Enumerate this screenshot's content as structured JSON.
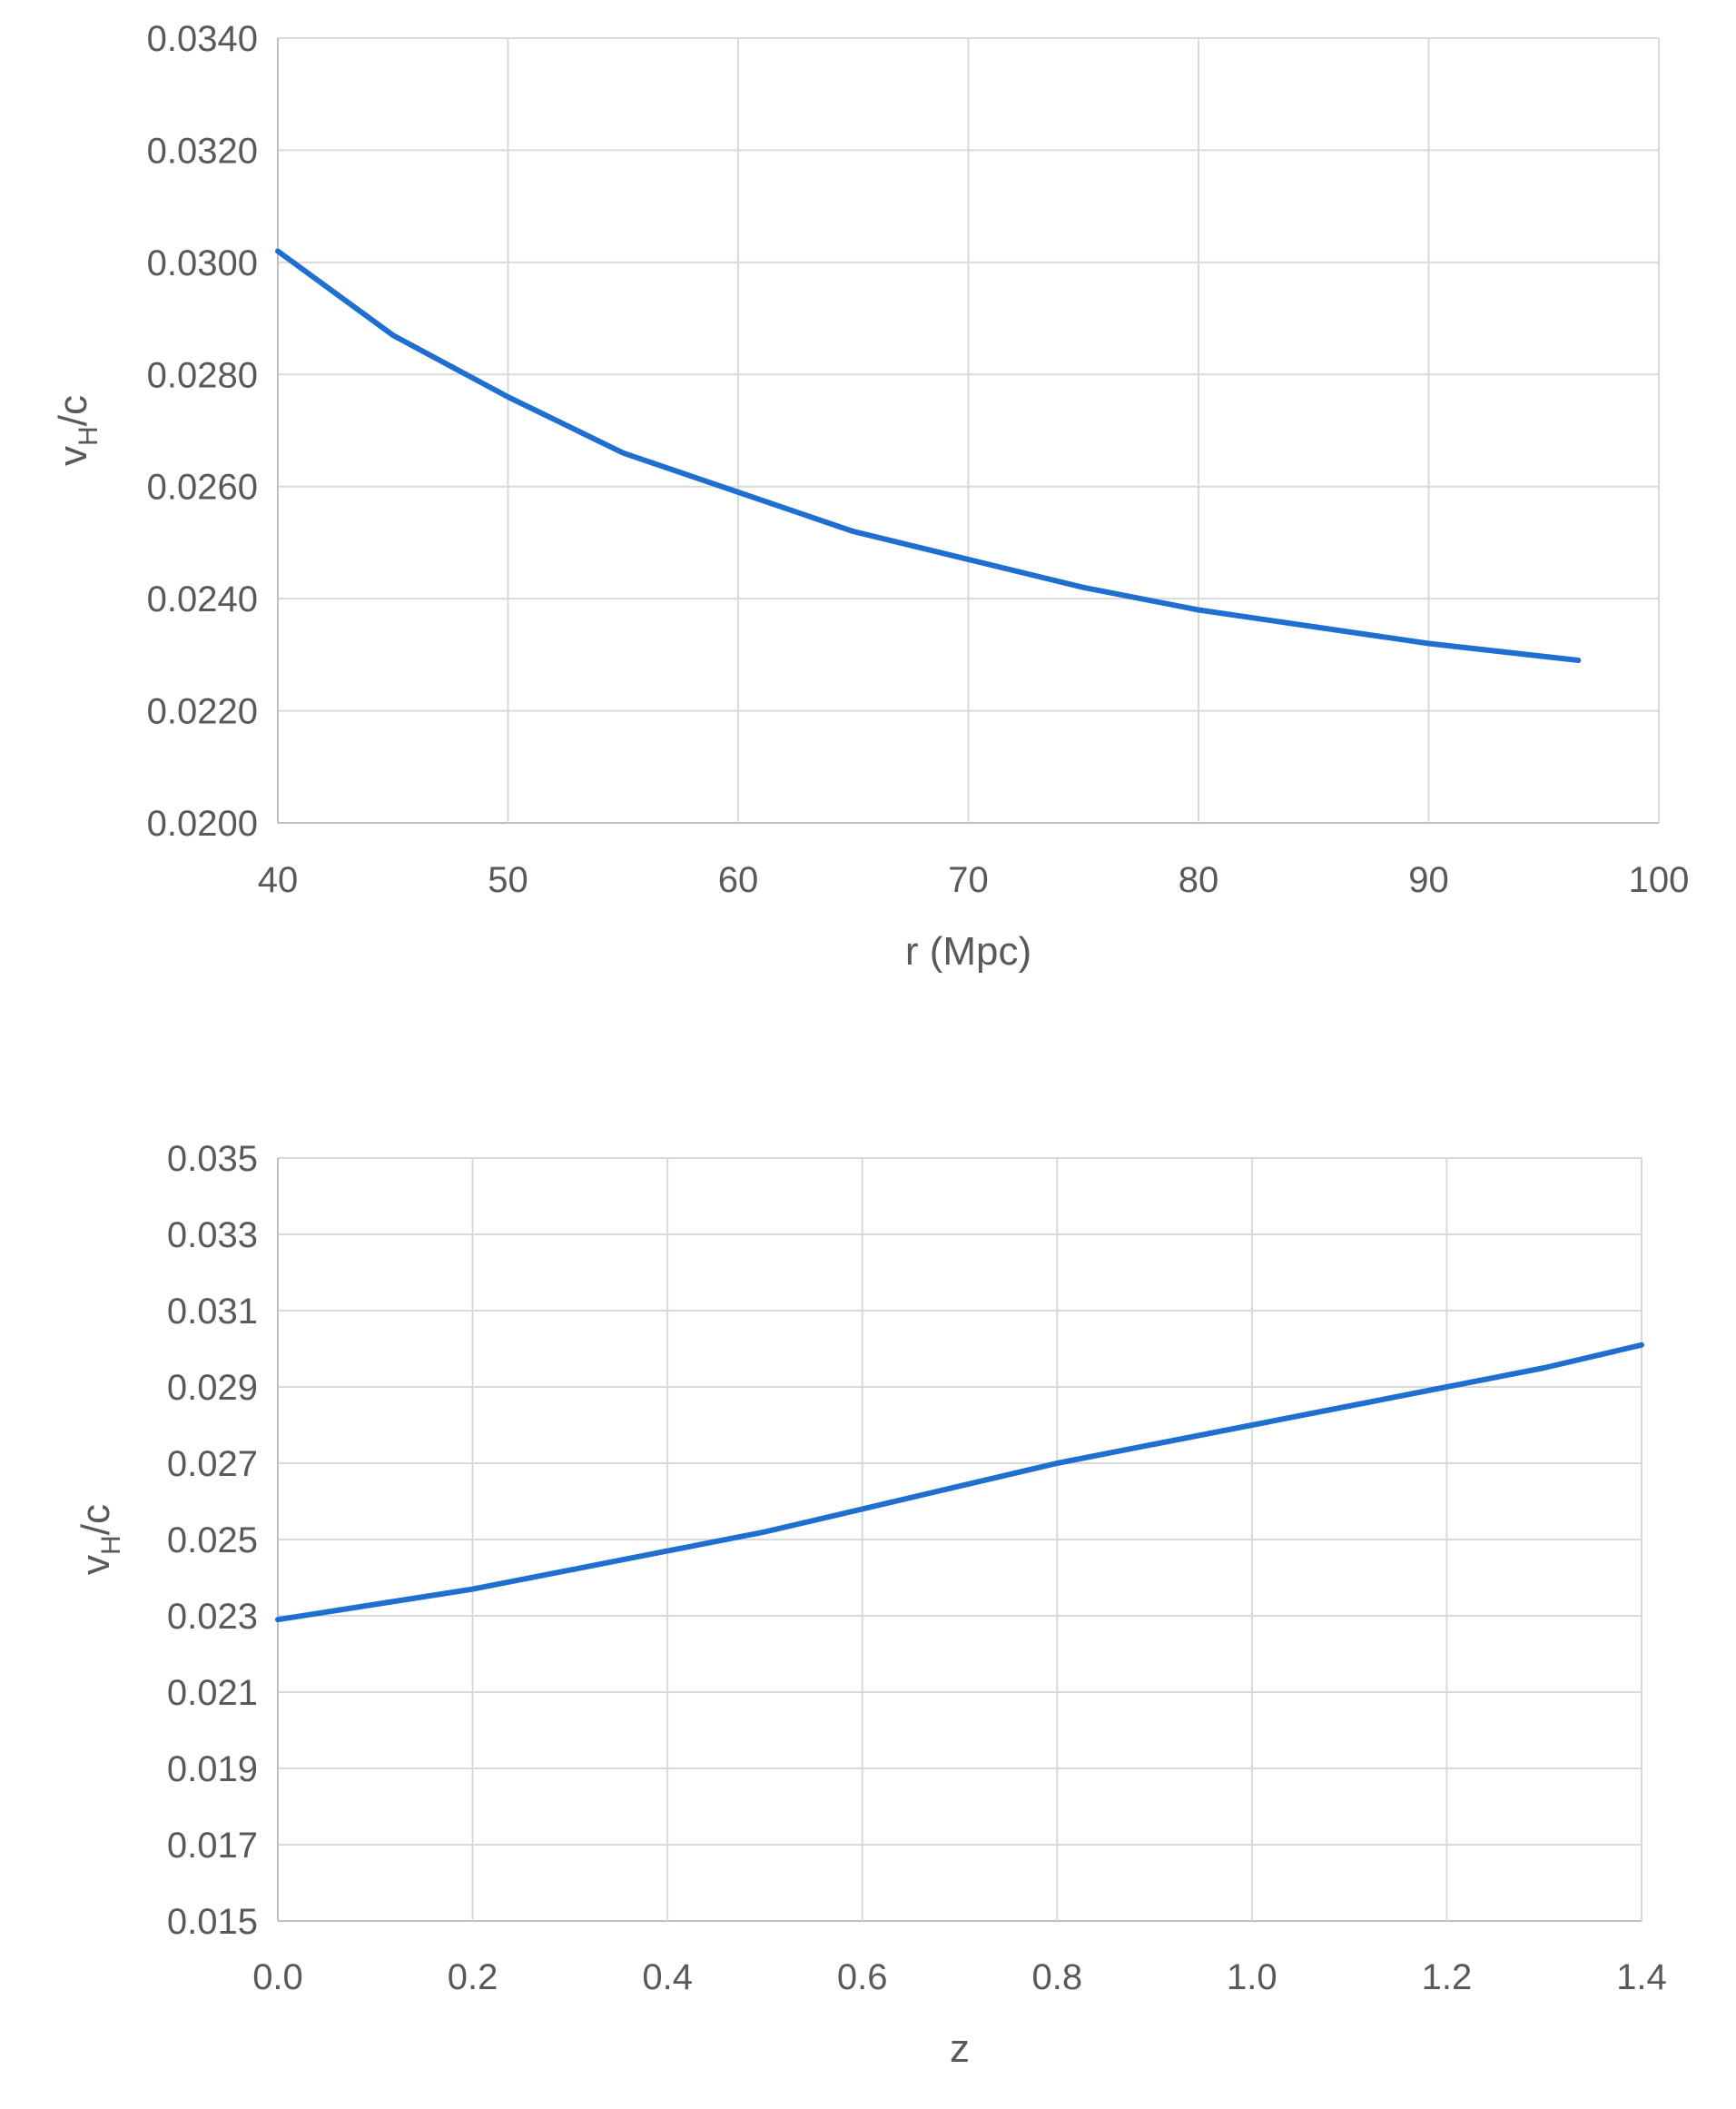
{
  "chart_data": [
    {
      "type": "line",
      "xlabel": "r (Mpc)",
      "ylabel": {
        "base": "v",
        "sub": "H",
        "rest": "/c"
      },
      "xlim": [
        40,
        100
      ],
      "ylim": [
        0.02,
        0.034
      ],
      "xticks": [
        "40",
        "50",
        "60",
        "70",
        "80",
        "90",
        "100"
      ],
      "yticks": [
        "0.0200",
        "0.0220",
        "0.0240",
        "0.0260",
        "0.0280",
        "0.0300",
        "0.0320",
        "0.0340"
      ],
      "grid": true,
      "series": [
        {
          "color": "#1f6fd1",
          "x": [
            40,
            45,
            50,
            55,
            60,
            65,
            70,
            75,
            80,
            85,
            90,
            96.5
          ],
          "y": [
            0.0302,
            0.0287,
            0.0276,
            0.0266,
            0.0259,
            0.0252,
            0.0247,
            0.0242,
            0.0238,
            0.0235,
            0.0232,
            0.0229
          ]
        }
      ]
    },
    {
      "type": "line",
      "xlabel": "z",
      "ylabel": {
        "base": "v",
        "sub": "H",
        "rest": "/c"
      },
      "xlim": [
        0,
        1.4
      ],
      "ylim": [
        0.015,
        0.035
      ],
      "xticks": [
        "0.0",
        "0.2",
        "0.4",
        "0.6",
        "0.8",
        "1.0",
        "1.2",
        "1.4"
      ],
      "yticks": [
        "0.015",
        "0.017",
        "0.019",
        "0.021",
        "0.023",
        "0.025",
        "0.027",
        "0.029",
        "0.031",
        "0.033",
        "0.035"
      ],
      "grid": true,
      "series": [
        {
          "color": "#1f6fd1",
          "x": [
            0.0,
            0.1,
            0.2,
            0.3,
            0.4,
            0.5,
            0.6,
            0.7,
            0.8,
            0.9,
            1.0,
            1.1,
            1.2,
            1.3,
            1.4
          ],
          "y": [
            0.0229,
            0.0233,
            0.0237,
            0.0242,
            0.0247,
            0.0252,
            0.0258,
            0.0264,
            0.027,
            0.0275,
            0.028,
            0.0285,
            0.029,
            0.0295,
            0.0301
          ]
        }
      ]
    }
  ]
}
